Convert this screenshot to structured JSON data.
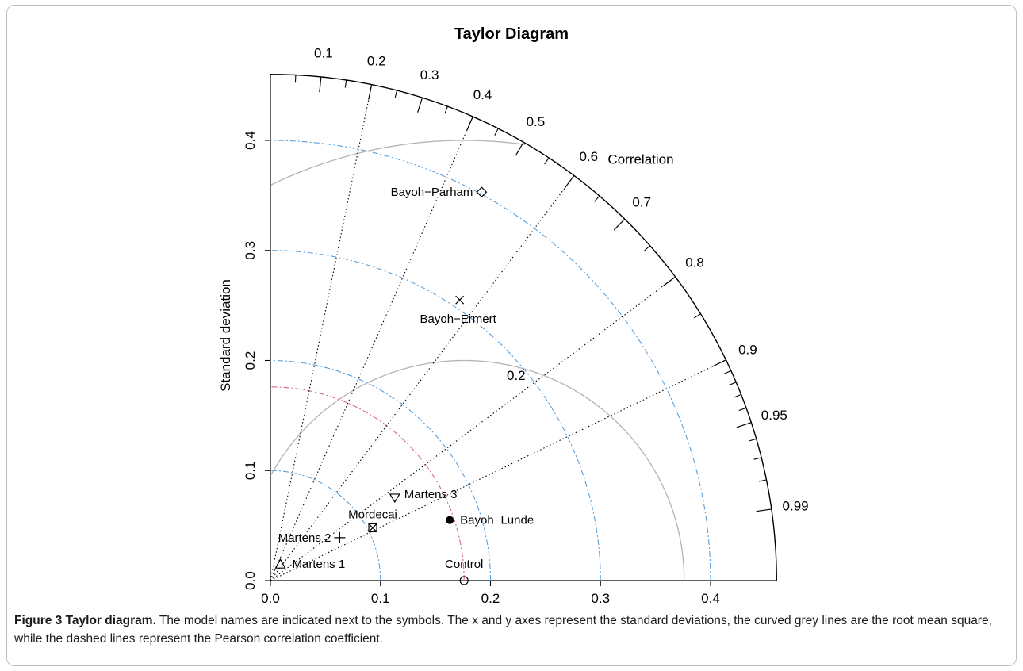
{
  "chart_data": {
    "type": "scatter",
    "subtype": "taylor-diagram",
    "title": "Taylor Diagram",
    "ylabel": "Standard deviation",
    "correlation_label": "Correlation",
    "rmsd_label": "0.2",
    "axis_range": [
      0,
      0.46
    ],
    "ticks": [
      0.0,
      0.1,
      0.2,
      0.3,
      0.4
    ],
    "tick_labels": [
      "0.0",
      "0.1",
      "0.2",
      "0.3",
      "0.4"
    ],
    "correlation_ticks": [
      0.1,
      0.2,
      0.3,
      0.4,
      0.5,
      0.6,
      0.7,
      0.8,
      0.9,
      0.95,
      0.99
    ],
    "correlation_tick_labels": [
      "0.1",
      "0.2",
      "0.3",
      "0.4",
      "0.5",
      "0.6",
      "0.7",
      "0.8",
      "0.9",
      "0.95",
      "0.99"
    ],
    "correlation_lines": [
      0.2,
      0.4,
      0.6,
      0.8,
      0.9
    ],
    "sd_arcs": [
      0.1,
      0.2,
      0.3,
      0.4
    ],
    "reference_sd": 0.176,
    "rmsd_arcs": [
      0.2,
      0.4
    ],
    "points": [
      {
        "name": "Control",
        "x": 0.176,
        "y": 0.0,
        "marker": "circle"
      },
      {
        "name": "Bayoh−Lunde",
        "x": 0.163,
        "y": 0.055,
        "marker": "filled-circle"
      },
      {
        "name": "Martens 3",
        "x": 0.113,
        "y": 0.075,
        "marker": "triangle-down"
      },
      {
        "name": "Mordecai",
        "x": 0.093,
        "y": 0.048,
        "marker": "square-x"
      },
      {
        "name": "Martens 2",
        "x": 0.063,
        "y": 0.039,
        "marker": "plus"
      },
      {
        "name": "Martens 1",
        "x": 0.009,
        "y": 0.015,
        "marker": "triangle-up"
      },
      {
        "name": "Bayoh−Ermert",
        "x": 0.172,
        "y": 0.255,
        "marker": "x"
      },
      {
        "name": "Bayoh−Parham",
        "x": 0.192,
        "y": 0.353,
        "marker": "diamond"
      }
    ]
  },
  "caption": {
    "label": "Figure 3 Taylor diagram.",
    "text": " The model names are indicated next to the symbols. The x and y axes represent the standard deviations, the curved grey lines are the root mean square, while the dashed lines represent the Pearson correlation coefficient."
  }
}
